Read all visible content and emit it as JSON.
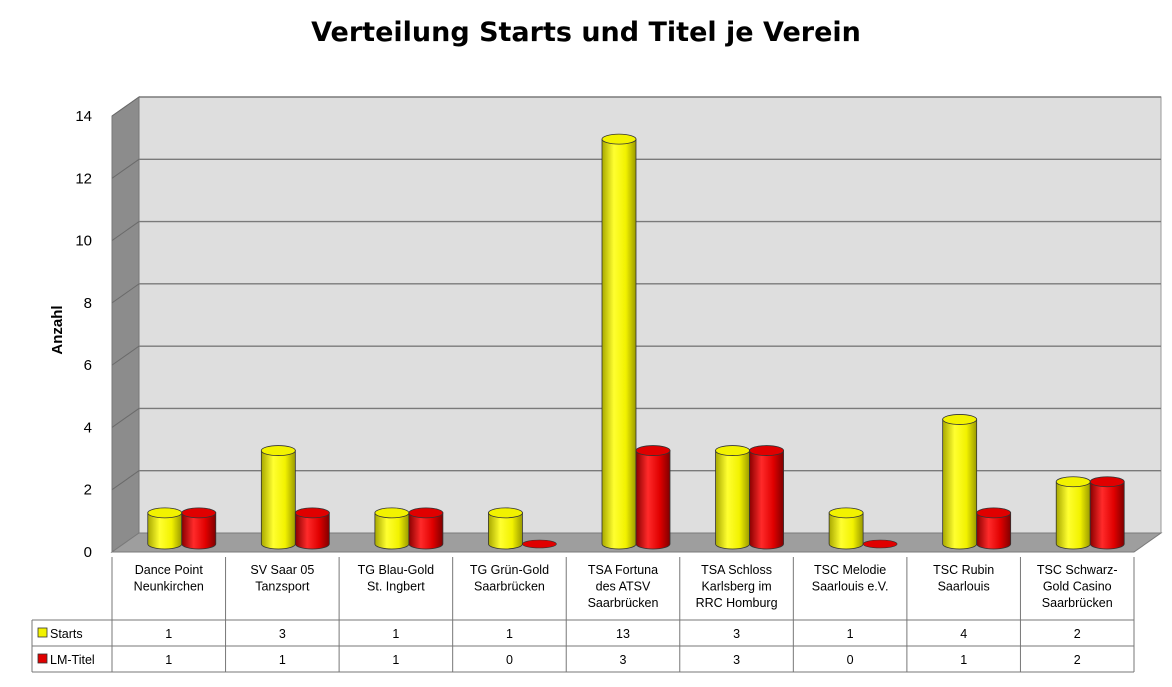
{
  "chart_data": {
    "type": "bar",
    "title": "Verteilung Starts und Titel je Verein",
    "ylabel": "Anzahl",
    "xlabel": "",
    "ylim": [
      0,
      14
    ],
    "yticks": [
      0,
      2,
      4,
      6,
      8,
      10,
      12,
      14
    ],
    "grid": true,
    "style": "3d-cylinder",
    "legend_placement": "data-table-left",
    "categories": [
      [
        "Dance Point",
        "Neunkirchen"
      ],
      [
        "SV Saar 05",
        "Tanzsport"
      ],
      [
        "TG Blau-Gold",
        "St. Ingbert"
      ],
      [
        "TG Grün-Gold",
        "Saarbrücken"
      ],
      [
        "TSA Fortuna",
        "des ATSV",
        "Saarbrücken"
      ],
      [
        "TSA Schloss",
        "Karlsberg im",
        "RRC Homburg"
      ],
      [
        "TSC Melodie",
        "Saarlouis e.V."
      ],
      [
        "TSC Rubin",
        "Saarlouis"
      ],
      [
        "TSC Schwarz-",
        "Gold Casino",
        "Saarbrücken"
      ]
    ],
    "series": [
      {
        "name": "Starts",
        "color": "#f2f200",
        "values": [
          1,
          3,
          1,
          1,
          13,
          3,
          1,
          4,
          2
        ]
      },
      {
        "name": "LM-Titel",
        "color": "#e00000",
        "values": [
          1,
          1,
          1,
          0,
          3,
          3,
          0,
          1,
          2
        ]
      }
    ]
  }
}
